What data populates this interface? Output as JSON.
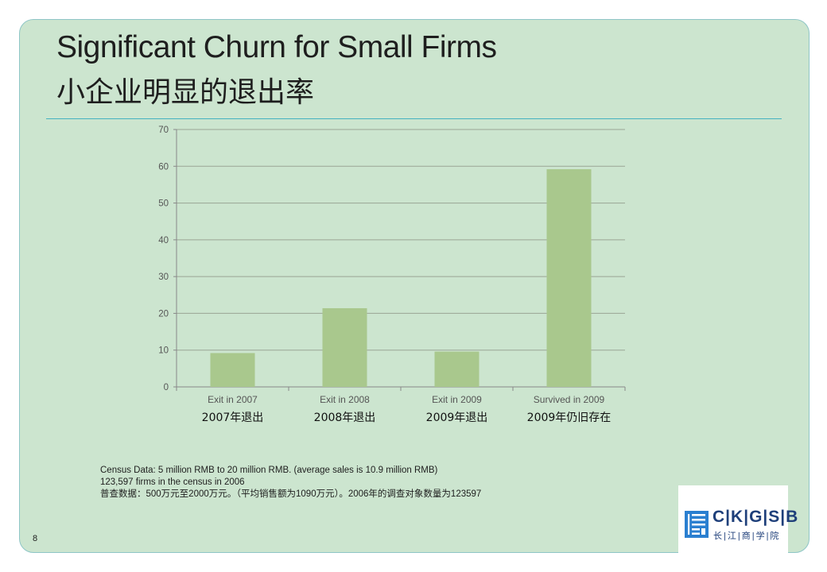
{
  "slide": {
    "title_en": "Significant Churn for Small Firms",
    "title_cn": "小企业明显的退出率",
    "page_number": "8"
  },
  "notes": [
    "Census Data: 5 million RMB to 20 million RMB. (average  sales is 10.9 million RMB)",
    "123,597 firms in the census in 2006",
    "普查数据：500万元至2000万元。（平均销售额为1090万元）。2006年的调查对象数量为123597"
  ],
  "logo": {
    "text": "C|K|G|S|B",
    "subtitle": "长|江|商|学|院"
  },
  "chart_data": {
    "type": "bar",
    "categories": [
      "Exit in 2007",
      "Exit in 2008",
      "Exit in 2009",
      "Survived in 2009"
    ],
    "categories_cn": [
      "2007年退出",
      "2008年退出",
      "2009年退出",
      "2009年仍旧存在"
    ],
    "values": [
      9.2,
      21.4,
      9.6,
      59.2
    ],
    "ylim": [
      0,
      70
    ],
    "yticks": [
      0,
      10,
      20,
      30,
      40,
      50,
      60,
      70
    ],
    "grid": true,
    "bar_color": "#a9c88d",
    "grid_color": "#9aa595"
  }
}
